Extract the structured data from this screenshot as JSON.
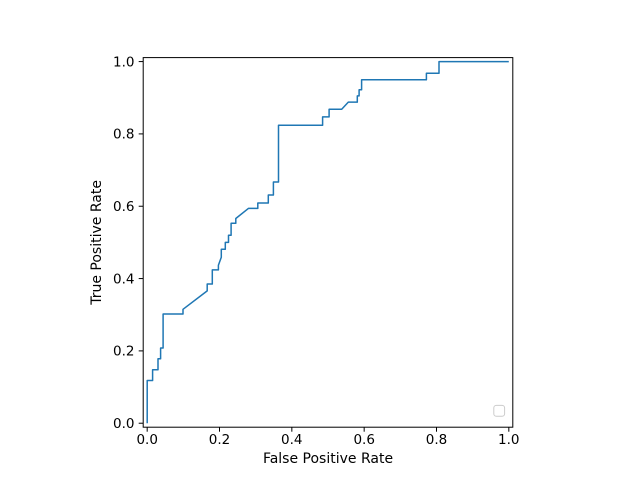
{
  "figure": {
    "background": "#ffffff",
    "axes_background": "#ffffff",
    "spine_color": "#000000"
  },
  "chart_data": {
    "type": "line",
    "subtype": "roc-curve-step",
    "title": "",
    "xlabel": "False Positive Rate",
    "ylabel": "True Positive Rate",
    "xlim": [
      -0.011,
      1.011
    ],
    "ylim": [
      -0.011,
      1.011
    ],
    "xticks": [
      0.0,
      0.2,
      0.4,
      0.6,
      0.8,
      1.0
    ],
    "yticks": [
      0.0,
      0.2,
      0.4,
      0.6,
      0.8,
      1.0
    ],
    "xtick_labels": [
      "0.0",
      "0.2",
      "0.4",
      "0.6",
      "0.8",
      "1.0"
    ],
    "ytick_labels": [
      "0.0",
      "0.2",
      "0.4",
      "0.6",
      "0.8",
      "1.0"
    ],
    "grid": false,
    "legend": {
      "visible": true,
      "empty": true,
      "entries": [],
      "position": "lower-right",
      "frame_color": "#cccccc",
      "face_color": "#ffffff"
    },
    "series": [
      {
        "name": "ROC curve",
        "color": "#1f77b4",
        "line_width": 1.5,
        "points": [
          [
            0.0,
            0.0
          ],
          [
            0.0,
            0.118
          ],
          [
            0.015,
            0.118
          ],
          [
            0.015,
            0.148
          ],
          [
            0.03,
            0.148
          ],
          [
            0.03,
            0.178
          ],
          [
            0.037,
            0.178
          ],
          [
            0.037,
            0.208
          ],
          [
            0.044,
            0.208
          ],
          [
            0.044,
            0.302
          ],
          [
            0.099,
            0.302
          ],
          [
            0.099,
            0.315
          ],
          [
            0.166,
            0.366
          ],
          [
            0.166,
            0.385
          ],
          [
            0.18,
            0.385
          ],
          [
            0.18,
            0.424
          ],
          [
            0.197,
            0.424
          ],
          [
            0.197,
            0.437
          ],
          [
            0.205,
            0.459
          ],
          [
            0.205,
            0.481
          ],
          [
            0.216,
            0.481
          ],
          [
            0.216,
            0.5
          ],
          [
            0.225,
            0.5
          ],
          [
            0.225,
            0.52
          ],
          [
            0.232,
            0.52
          ],
          [
            0.232,
            0.553
          ],
          [
            0.245,
            0.553
          ],
          [
            0.245,
            0.566
          ],
          [
            0.28,
            0.594
          ],
          [
            0.306,
            0.594
          ],
          [
            0.306,
            0.609
          ],
          [
            0.335,
            0.609
          ],
          [
            0.335,
            0.631
          ],
          [
            0.349,
            0.631
          ],
          [
            0.349,
            0.667
          ],
          [
            0.363,
            0.667
          ],
          [
            0.363,
            0.824
          ],
          [
            0.485,
            0.824
          ],
          [
            0.485,
            0.847
          ],
          [
            0.503,
            0.847
          ],
          [
            0.503,
            0.868
          ],
          [
            0.538,
            0.868
          ],
          [
            0.556,
            0.888
          ],
          [
            0.581,
            0.888
          ],
          [
            0.581,
            0.905
          ],
          [
            0.586,
            0.905
          ],
          [
            0.586,
            0.922
          ],
          [
            0.593,
            0.922
          ],
          [
            0.593,
            0.95
          ],
          [
            0.772,
            0.95
          ],
          [
            0.772,
            0.968
          ],
          [
            0.807,
            0.968
          ],
          [
            0.807,
            1.0
          ],
          [
            1.0,
            1.0
          ]
        ]
      }
    ]
  }
}
